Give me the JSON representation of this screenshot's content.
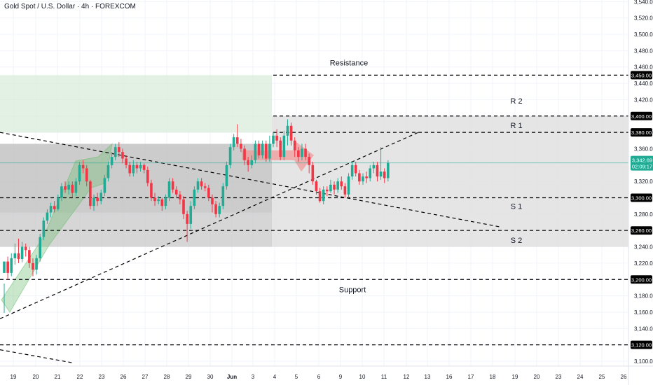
{
  "chart_data": {
    "type": "candlestick",
    "title": "Gold Spot / U.S. Dollar · 4h · FOREXCOM",
    "x_ticks": [
      "19",
      "20",
      "21",
      "22",
      "23",
      "26",
      "27",
      "28",
      "29",
      "30",
      "Jun",
      "3",
      "4",
      "5",
      "6",
      "9",
      "10",
      "11",
      "12",
      "13",
      "16",
      "17",
      "18",
      "19",
      "20",
      "23",
      "24",
      "25",
      "26"
    ],
    "y_ticks": [
      "3,540.00",
      "3,520.00",
      "3,500.00",
      "3,480.00",
      "3,460.00",
      "3,440.00",
      "3,420.00",
      "3,380.00",
      "3,360.00",
      "3,320.00",
      "3,280.00",
      "3,240.00",
      "3,220.00",
      "3,180.00",
      "3,160.00",
      "3,140.00",
      "3,100.00"
    ],
    "y_range": [
      3094,
      3542
    ],
    "last_price": {
      "value": "3,342.69",
      "countdown": "02:09:17",
      "color": "#22ab94"
    },
    "levels": [
      {
        "label": "3,450.00",
        "price": 3450,
        "name": "Resistance"
      },
      {
        "label": "3,400.00",
        "price": 3400,
        "name": "R 2"
      },
      {
        "label": "3,380.00",
        "price": 3380,
        "name": "R 1"
      },
      {
        "label": "3,300.00",
        "price": 3300,
        "name": "S 1"
      },
      {
        "label": "3,260.00",
        "price": 3260,
        "name": "S 2"
      },
      {
        "label": "3,200.00",
        "price": 3200,
        "name": "Support"
      },
      {
        "label": "3,120.00",
        "price": 3120,
        "name": ""
      }
    ],
    "candles": [
      [
        3208,
        3222,
        3195,
        3159
      ],
      [
        3222,
        3208,
        3228,
        3200
      ],
      [
        3208,
        3226,
        3232,
        3204
      ],
      [
        3226,
        3232,
        3244,
        3218
      ],
      [
        3232,
        3225,
        3250,
        3220
      ],
      [
        3225,
        3240,
        3246,
        3221
      ],
      [
        3240,
        3236,
        3244,
        3228
      ],
      [
        3236,
        3220,
        3240,
        3214
      ],
      [
        3220,
        3212,
        3226,
        3204
      ],
      [
        3212,
        3226,
        3230,
        3206
      ],
      [
        3226,
        3252,
        3256,
        3222
      ],
      [
        3252,
        3272,
        3276,
        3248
      ],
      [
        3272,
        3282,
        3286,
        3268
      ],
      [
        3282,
        3290,
        3294,
        3276
      ],
      [
        3290,
        3286,
        3296,
        3282
      ],
      [
        3286,
        3300,
        3304,
        3284
      ],
      [
        3300,
        3314,
        3318,
        3296
      ],
      [
        3314,
        3310,
        3320,
        3306
      ],
      [
        3310,
        3316,
        3320,
        3304
      ],
      [
        3316,
        3306,
        3320,
        3300
      ],
      [
        3306,
        3320,
        3324,
        3302
      ],
      [
        3320,
        3340,
        3344,
        3316
      ],
      [
        3340,
        3336,
        3346,
        3330
      ],
      [
        3336,
        3320,
        3340,
        3314
      ],
      [
        3320,
        3290,
        3322,
        3286
      ],
      [
        3290,
        3300,
        3304,
        3284
      ],
      [
        3300,
        3296,
        3306,
        3290
      ],
      [
        3296,
        3306,
        3310,
        3292
      ],
      [
        3306,
        3324,
        3328,
        3302
      ],
      [
        3324,
        3340,
        3344,
        3320
      ],
      [
        3340,
        3350,
        3356,
        3336
      ],
      [
        3350,
        3362,
        3366,
        3346
      ],
      [
        3362,
        3356,
        3368,
        3350
      ],
      [
        3356,
        3348,
        3360,
        3342
      ],
      [
        3348,
        3340,
        3352,
        3336
      ],
      [
        3340,
        3330,
        3344,
        3326
      ],
      [
        3330,
        3340,
        3346,
        3326
      ],
      [
        3340,
        3336,
        3344,
        3330
      ],
      [
        3336,
        3340,
        3344,
        3332
      ],
      [
        3340,
        3334,
        3342,
        3330
      ],
      [
        3334,
        3318,
        3338,
        3314
      ],
      [
        3318,
        3300,
        3322,
        3296
      ],
      [
        3300,
        3296,
        3306,
        3290
      ],
      [
        3296,
        3298,
        3302,
        3292
      ],
      [
        3298,
        3290,
        3300,
        3284
      ],
      [
        3290,
        3300,
        3304,
        3286
      ],
      [
        3300,
        3320,
        3324,
        3296
      ],
      [
        3320,
        3310,
        3324,
        3306
      ],
      [
        3310,
        3304,
        3314,
        3300
      ],
      [
        3304,
        3298,
        3308,
        3292
      ],
      [
        3298,
        3280,
        3302,
        3274
      ],
      [
        3280,
        3268,
        3284,
        3246
      ],
      [
        3268,
        3290,
        3296,
        3262
      ],
      [
        3290,
        3310,
        3314,
        3286
      ],
      [
        3310,
        3320,
        3324,
        3306
      ],
      [
        3320,
        3314,
        3324,
        3310
      ],
      [
        3314,
        3312,
        3318,
        3308
      ],
      [
        3312,
        3300,
        3316,
        3296
      ],
      [
        3300,
        3292,
        3304,
        3282
      ],
      [
        3292,
        3280,
        3296,
        3276
      ],
      [
        3280,
        3290,
        3294,
        3276
      ],
      [
        3290,
        3314,
        3318,
        3286
      ],
      [
        3314,
        3340,
        3344,
        3310
      ],
      [
        3340,
        3362,
        3366,
        3336
      ],
      [
        3362,
        3374,
        3378,
        3358
      ],
      [
        3374,
        3366,
        3390,
        3362
      ],
      [
        3366,
        3360,
        3372,
        3356
      ],
      [
        3360,
        3346,
        3364,
        3340
      ],
      [
        3346,
        3340,
        3350,
        3332
      ],
      [
        3340,
        3346,
        3352,
        3336
      ],
      [
        3346,
        3366,
        3370,
        3342
      ],
      [
        3366,
        3352,
        3370,
        3348
      ],
      [
        3352,
        3366,
        3370,
        3348
      ],
      [
        3366,
        3348,
        3370,
        3344
      ],
      [
        3348,
        3366,
        3376,
        3344
      ],
      [
        3366,
        3376,
        3380,
        3362
      ],
      [
        3376,
        3370,
        3384,
        3362
      ],
      [
        3370,
        3350,
        3374,
        3346
      ],
      [
        3350,
        3376,
        3382,
        3346
      ],
      [
        3376,
        3388,
        3396,
        3364
      ],
      [
        3388,
        3370,
        3392,
        3364
      ],
      [
        3370,
        3358,
        3374,
        3350
      ],
      [
        3358,
        3350,
        3362,
        3344
      ],
      [
        3350,
        3360,
        3366,
        3346
      ],
      [
        3360,
        3350,
        3366,
        3346
      ],
      [
        3350,
        3340,
        3354,
        3330
      ],
      [
        3340,
        3320,
        3344,
        3316
      ],
      [
        3320,
        3308,
        3322,
        3304
      ],
      [
        3308,
        3296,
        3312,
        3294
      ],
      [
        3296,
        3310,
        3314,
        3292
      ],
      [
        3310,
        3308,
        3314,
        3302
      ],
      [
        3308,
        3316,
        3322,
        3306
      ],
      [
        3316,
        3310,
        3320,
        3304
      ],
      [
        3310,
        3320,
        3324,
        3306
      ],
      [
        3320,
        3314,
        3326,
        3310
      ],
      [
        3314,
        3304,
        3318,
        3300
      ],
      [
        3304,
        3326,
        3330,
        3300
      ],
      [
        3326,
        3340,
        3344,
        3322
      ],
      [
        3340,
        3330,
        3344,
        3326
      ],
      [
        3330,
        3320,
        3334,
        3316
      ],
      [
        3320,
        3326,
        3330,
        3316
      ],
      [
        3326,
        3324,
        3332,
        3318
      ],
      [
        3324,
        3336,
        3340,
        3320
      ],
      [
        3336,
        3340,
        3344,
        3330
      ],
      [
        3340,
        3326,
        3344,
        3320
      ],
      [
        3326,
        3332,
        3362,
        3322
      ],
      [
        3332,
        3324,
        3336,
        3318
      ],
      [
        3324,
        3342.69,
        3346,
        3320
      ]
    ],
    "bull_color": "#22ab94",
    "bear_color": "#f23645"
  }
}
